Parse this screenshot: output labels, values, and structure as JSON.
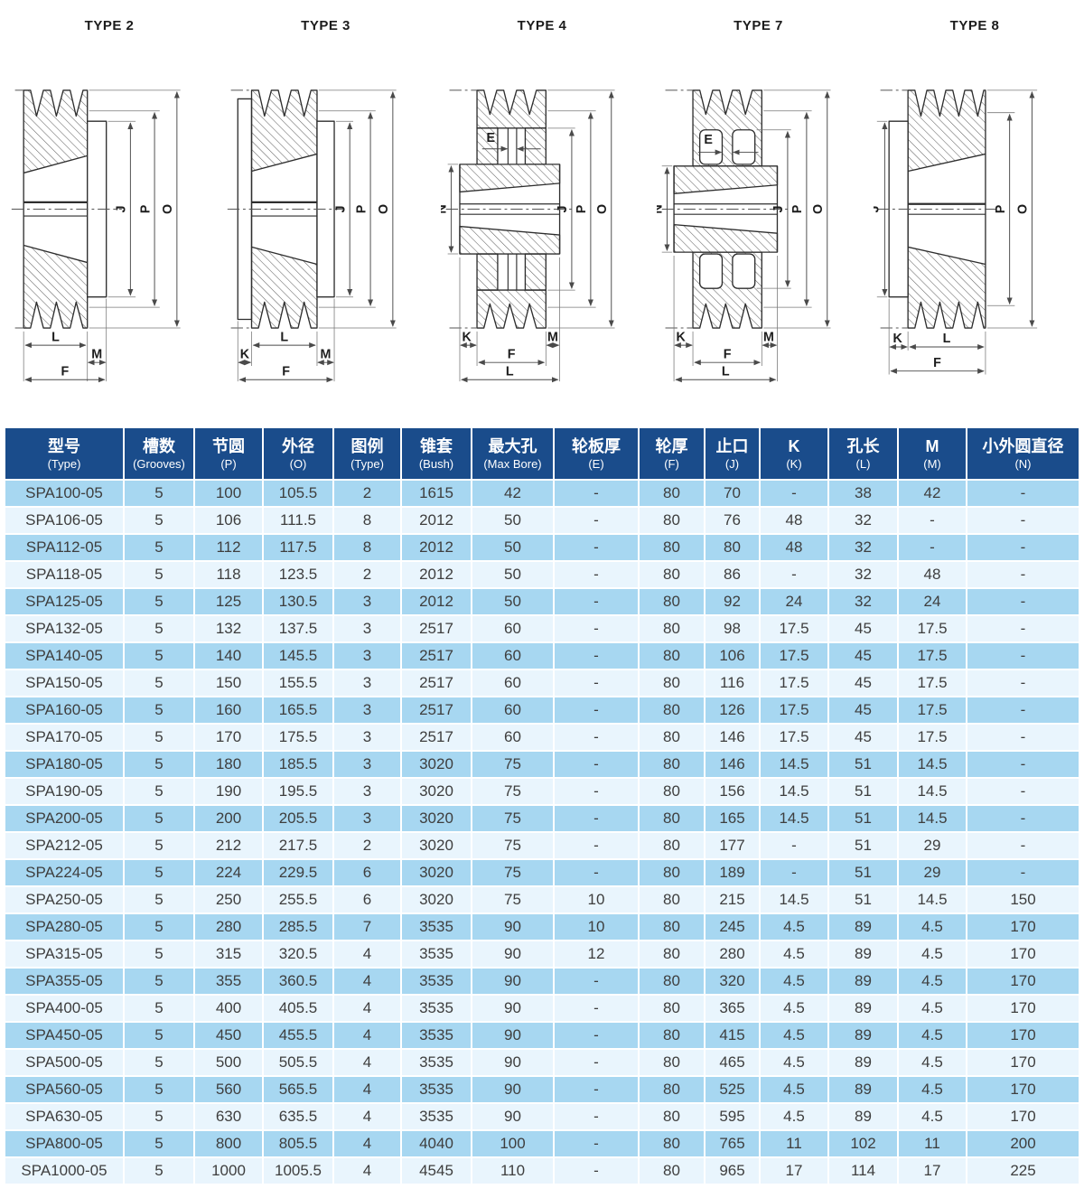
{
  "diagrams": [
    {
      "title": "TYPE 2",
      "dims": {
        "j": "J",
        "p": "P",
        "o": "O",
        "l": "L",
        "m": "M",
        "f": "F"
      }
    },
    {
      "title": "TYPE 3",
      "dims": {
        "j": "J",
        "p": "P",
        "o": "O",
        "k": "K",
        "l": "L",
        "m": "M",
        "f": "F"
      }
    },
    {
      "title": "TYPE 4",
      "dims": {
        "e": "E",
        "n": "N",
        "j": "J",
        "p": "P",
        "o": "O",
        "k": "K",
        "m": "M",
        "f": "F",
        "l": "L"
      }
    },
    {
      "title": "TYPE 7",
      "dims": {
        "e": "E",
        "n": "N",
        "j": "J",
        "p": "P",
        "o": "O",
        "k": "K",
        "m": "M",
        "f": "F",
        "l": "L"
      }
    },
    {
      "title": "TYPE 8",
      "dims": {
        "j": "J",
        "p": "P",
        "o": "O",
        "k": "K",
        "l": "L",
        "f": "F"
      }
    }
  ],
  "table": {
    "headers": [
      {
        "zh": "型号",
        "en": "(Type)"
      },
      {
        "zh": "槽数",
        "en": "(Grooves)"
      },
      {
        "zh": "节圆",
        "en": "(P)"
      },
      {
        "zh": "外径",
        "en": "(O)"
      },
      {
        "zh": "图例",
        "en": "(Type)"
      },
      {
        "zh": "锥套",
        "en": "(Bush)"
      },
      {
        "zh": "最大孔",
        "en": "(Max Bore)"
      },
      {
        "zh": "轮板厚",
        "en": "(E)"
      },
      {
        "zh": "轮厚",
        "en": "(F)"
      },
      {
        "zh": "止口",
        "en": "(J)"
      },
      {
        "zh": "K",
        "en": "(K)"
      },
      {
        "zh": "孔长",
        "en": "(L)"
      },
      {
        "zh": "M",
        "en": "(M)"
      },
      {
        "zh": "小外圆直径",
        "en": "(N)"
      }
    ],
    "rows": [
      [
        "SPA100-05",
        "5",
        "100",
        "105.5",
        "2",
        "1615",
        "42",
        "-",
        "80",
        "70",
        "-",
        "38",
        "42",
        "-"
      ],
      [
        "SPA106-05",
        "5",
        "106",
        "111.5",
        "8",
        "2012",
        "50",
        "-",
        "80",
        "76",
        "48",
        "32",
        "-",
        "-"
      ],
      [
        "SPA112-05",
        "5",
        "112",
        "117.5",
        "8",
        "2012",
        "50",
        "-",
        "80",
        "80",
        "48",
        "32",
        "-",
        "-"
      ],
      [
        "SPA118-05",
        "5",
        "118",
        "123.5",
        "2",
        "2012",
        "50",
        "-",
        "80",
        "86",
        "-",
        "32",
        "48",
        "-"
      ],
      [
        "SPA125-05",
        "5",
        "125",
        "130.5",
        "3",
        "2012",
        "50",
        "-",
        "80",
        "92",
        "24",
        "32",
        "24",
        "-"
      ],
      [
        "SPA132-05",
        "5",
        "132",
        "137.5",
        "3",
        "2517",
        "60",
        "-",
        "80",
        "98",
        "17.5",
        "45",
        "17.5",
        "-"
      ],
      [
        "SPA140-05",
        "5",
        "140",
        "145.5",
        "3",
        "2517",
        "60",
        "-",
        "80",
        "106",
        "17.5",
        "45",
        "17.5",
        "-"
      ],
      [
        "SPA150-05",
        "5",
        "150",
        "155.5",
        "3",
        "2517",
        "60",
        "-",
        "80",
        "116",
        "17.5",
        "45",
        "17.5",
        "-"
      ],
      [
        "SPA160-05",
        "5",
        "160",
        "165.5",
        "3",
        "2517",
        "60",
        "-",
        "80",
        "126",
        "17.5",
        "45",
        "17.5",
        "-"
      ],
      [
        "SPA170-05",
        "5",
        "170",
        "175.5",
        "3",
        "2517",
        "60",
        "-",
        "80",
        "146",
        "17.5",
        "45",
        "17.5",
        "-"
      ],
      [
        "SPA180-05",
        "5",
        "180",
        "185.5",
        "3",
        "3020",
        "75",
        "-",
        "80",
        "146",
        "14.5",
        "51",
        "14.5",
        "-"
      ],
      [
        "SPA190-05",
        "5",
        "190",
        "195.5",
        "3",
        "3020",
        "75",
        "-",
        "80",
        "156",
        "14.5",
        "51",
        "14.5",
        "-"
      ],
      [
        "SPA200-05",
        "5",
        "200",
        "205.5",
        "3",
        "3020",
        "75",
        "-",
        "80",
        "165",
        "14.5",
        "51",
        "14.5",
        "-"
      ],
      [
        "SPA212-05",
        "5",
        "212",
        "217.5",
        "2",
        "3020",
        "75",
        "-",
        "80",
        "177",
        "-",
        "51",
        "29",
        "-"
      ],
      [
        "SPA224-05",
        "5",
        "224",
        "229.5",
        "6",
        "3020",
        "75",
        "-",
        "80",
        "189",
        "-",
        "51",
        "29",
        "-"
      ],
      [
        "SPA250-05",
        "5",
        "250",
        "255.5",
        "6",
        "3020",
        "75",
        "10",
        "80",
        "215",
        "14.5",
        "51",
        "14.5",
        "150"
      ],
      [
        "SPA280-05",
        "5",
        "280",
        "285.5",
        "7",
        "3535",
        "90",
        "10",
        "80",
        "245",
        "4.5",
        "89",
        "4.5",
        "170"
      ],
      [
        "SPA315-05",
        "5",
        "315",
        "320.5",
        "4",
        "3535",
        "90",
        "12",
        "80",
        "280",
        "4.5",
        "89",
        "4.5",
        "170"
      ],
      [
        "SPA355-05",
        "5",
        "355",
        "360.5",
        "4",
        "3535",
        "90",
        "-",
        "80",
        "320",
        "4.5",
        "89",
        "4.5",
        "170"
      ],
      [
        "SPA400-05",
        "5",
        "400",
        "405.5",
        "4",
        "3535",
        "90",
        "-",
        "80",
        "365",
        "4.5",
        "89",
        "4.5",
        "170"
      ],
      [
        "SPA450-05",
        "5",
        "450",
        "455.5",
        "4",
        "3535",
        "90",
        "-",
        "80",
        "415",
        "4.5",
        "89",
        "4.5",
        "170"
      ],
      [
        "SPA500-05",
        "5",
        "500",
        "505.5",
        "4",
        "3535",
        "90",
        "-",
        "80",
        "465",
        "4.5",
        "89",
        "4.5",
        "170"
      ],
      [
        "SPA560-05",
        "5",
        "560",
        "565.5",
        "4",
        "3535",
        "90",
        "-",
        "80",
        "525",
        "4.5",
        "89",
        "4.5",
        "170"
      ],
      [
        "SPA630-05",
        "5",
        "630",
        "635.5",
        "4",
        "3535",
        "90",
        "-",
        "80",
        "595",
        "4.5",
        "89",
        "4.5",
        "170"
      ],
      [
        "SPA800-05",
        "5",
        "800",
        "805.5",
        "4",
        "4040",
        "100",
        "-",
        "80",
        "765",
        "11",
        "102",
        "11",
        "200"
      ],
      [
        "SPA1000-05",
        "5",
        "1000",
        "1005.5",
        "4",
        "4545",
        "110",
        "-",
        "80",
        "965",
        "17",
        "114",
        "17",
        "225"
      ]
    ]
  },
  "colors": {
    "header_bg": "#1a4c8b",
    "row_light": "#a7d7f1",
    "row_pale": "#e9f5fd",
    "body_text": "#3e3e3e"
  }
}
